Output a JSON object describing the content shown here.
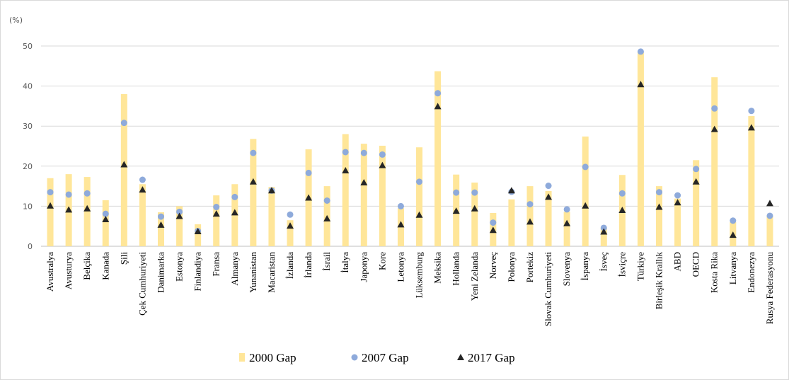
{
  "chart_data": {
    "type": "bar",
    "unit_label": "(%)",
    "ylim": [
      0,
      50
    ],
    "yticks": [
      0,
      10,
      20,
      30,
      40,
      50
    ],
    "grid": true,
    "legend_position": "bottom",
    "categories": [
      "Avustralya",
      "Avusturya",
      "Belçika",
      "Kanada",
      "Şili",
      "Çek Cumhuriyeti",
      "Danimarka",
      "Estonya",
      "Finlandiya",
      "Fransa",
      "Almanya",
      "Yunanistan",
      "Macaristan",
      "İzlanda",
      "İrlanda",
      "İsrail",
      "İtalya",
      "Japonya",
      "Kore",
      "Letonya",
      "Lüksemburg",
      "Meksika",
      "Hollanda",
      "Yeni Zelanda",
      "Norveç",
      "Polonya",
      "Portekiz",
      "Slovak Cumhuriyeti",
      "Slovenya",
      "İspanya",
      "İsveç",
      "İsviçre",
      "Türkiye",
      "Birleşik Krallık",
      "ABD",
      "OECD",
      "Kosta Rika",
      "Litvanya",
      "Endonezya",
      "Rusya Federasyonu"
    ],
    "series": [
      {
        "name": "2000 Gap",
        "kind": "bar",
        "color": "#ffe699",
        "values": [
          17,
          18,
          17.3,
          11.5,
          38,
          15.5,
          8.5,
          10,
          5.5,
          12.7,
          15.5,
          26.8,
          14.8,
          6.5,
          24.2,
          15,
          28,
          25.6,
          25.1,
          9.5,
          24.7,
          43.7,
          17.9,
          15.9,
          8.3,
          11.7,
          15,
          13.8,
          8.6,
          27.4,
          4.6,
          17.8,
          48.5,
          15,
          11.9,
          21.5,
          42.2,
          6,
          32.5,
          7.5
        ]
      },
      {
        "name": "2007 Gap",
        "kind": "circle",
        "color": "#8eaadb",
        "values": [
          13.5,
          12.9,
          13.2,
          8.1,
          30.8,
          16.6,
          7.4,
          8.6,
          3.8,
          9.8,
          12.3,
          23.3,
          13.9,
          7.9,
          18.3,
          11.4,
          23.5,
          23.3,
          22.9,
          10,
          16.1,
          38.2,
          13.4,
          13.4,
          5.9,
          13.6,
          10.5,
          15.1,
          9.2,
          19.8,
          4.6,
          13.2,
          48.6,
          13.5,
          12.7,
          19.3,
          34.4,
          6.4,
          33.8,
          7.6
        ]
      },
      {
        "name": "2017 Gap",
        "kind": "triangle",
        "color": "#262626",
        "values": [
          10.2,
          9.2,
          9.5,
          6.8,
          20.5,
          14.2,
          5.4,
          7.6,
          3.8,
          8.2,
          8.5,
          16.2,
          14,
          5.2,
          12.2,
          7,
          19,
          16,
          20.3,
          5.5,
          7.9,
          35,
          8.9,
          9.5,
          4.1,
          14,
          6.2,
          12.4,
          5.8,
          10.2,
          3.7,
          9.1,
          40.5,
          9.9,
          11,
          16.2,
          29.3,
          2.9,
          29.7,
          10.8
        ]
      }
    ]
  }
}
